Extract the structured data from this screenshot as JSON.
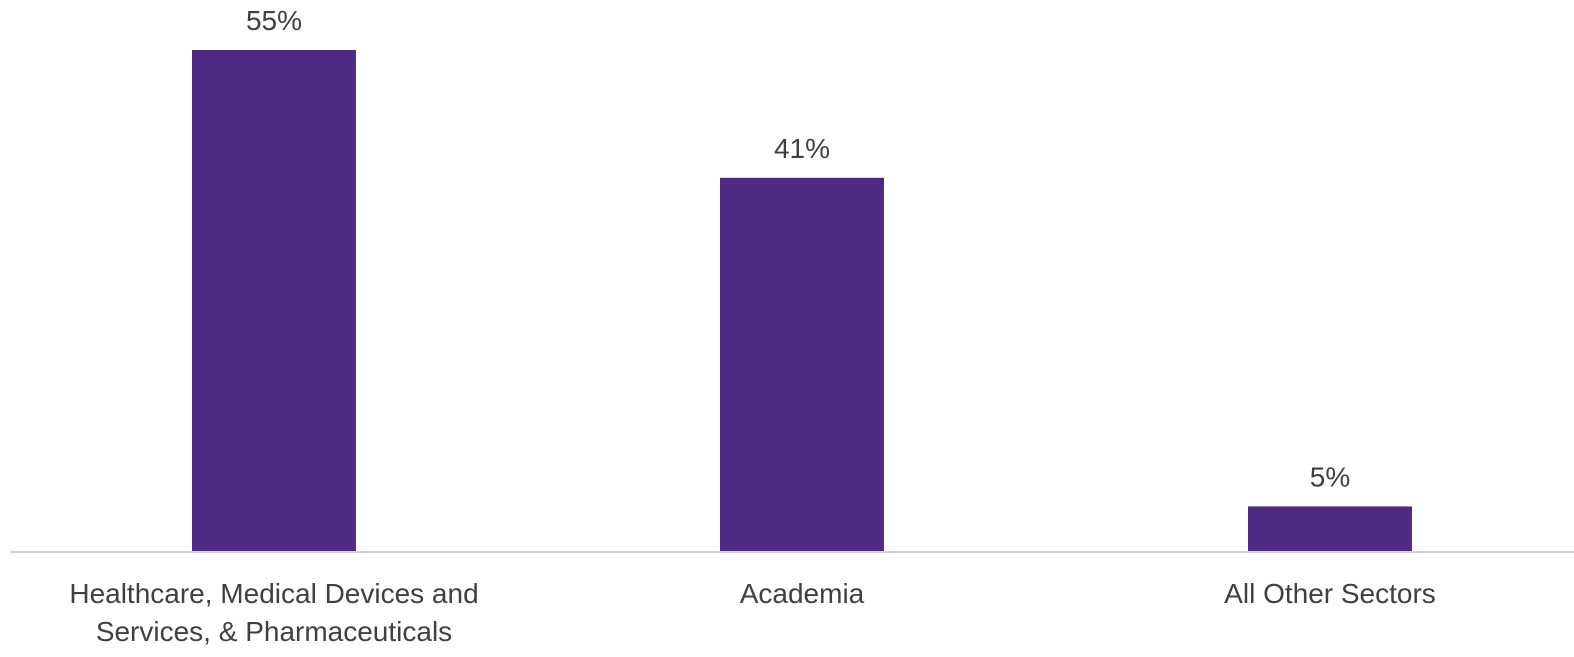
{
  "chart_data": {
    "type": "bar",
    "categories": [
      [
        "Healthcare, Medical Devices and",
        "Services, & Pharmaceuticals"
      ],
      [
        "Academia"
      ],
      [
        "All Other Sectors"
      ]
    ],
    "values": [
      55,
      41,
      5
    ],
    "data_labels": [
      "55%",
      "41%",
      "5%"
    ],
    "title": "",
    "xlabel": "",
    "ylabel": "",
    "ylim": [
      0,
      55
    ],
    "grid": false,
    "legend": "none",
    "colors": {
      "bar": "#4f2a82",
      "axis": "#d0d0d0",
      "text": "#404040"
    }
  }
}
